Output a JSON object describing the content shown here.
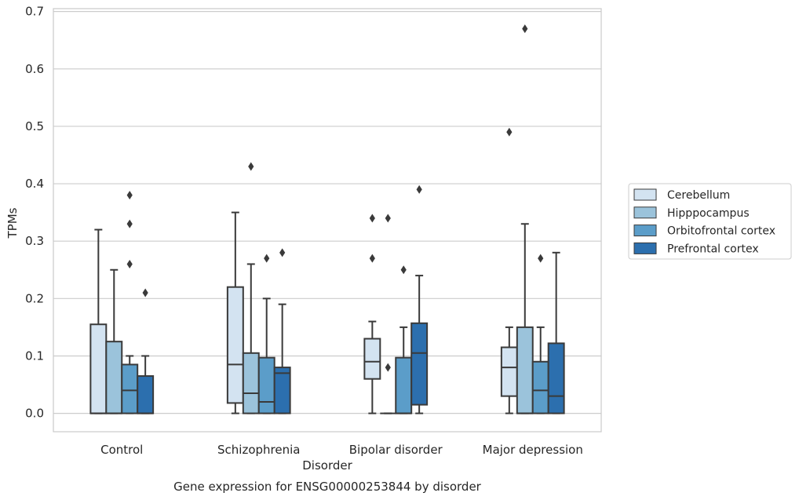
{
  "chart_data": {
    "type": "box",
    "title": "",
    "caption": "Gene expression for ENSG00000253844 by disorder",
    "xlabel": "Disorder",
    "ylabel": "TPMs",
    "ylim": [
      -0.032,
      0.705
    ],
    "yticks": [
      0.0,
      0.1,
      0.2,
      0.3,
      0.4,
      0.5,
      0.6,
      0.7
    ],
    "ytick_labels": [
      "0.0",
      "0.1",
      "0.2",
      "0.3",
      "0.4",
      "0.5",
      "0.6",
      "0.7"
    ],
    "grid": true,
    "legend_position": "right",
    "categories": [
      "Control",
      "Schizophrenia",
      "Bipolar disorder",
      "Major depression"
    ],
    "series": [
      {
        "name": "Cerebellum",
        "color": "#d3e3f1",
        "boxes": [
          {
            "whislo": 0.0,
            "q1": 0.0,
            "med": 0.0,
            "q3": 0.155,
            "whishi": 0.32,
            "fliers": []
          },
          {
            "whislo": 0.0,
            "q1": 0.018,
            "med": 0.085,
            "q3": 0.22,
            "whishi": 0.35,
            "fliers": []
          },
          {
            "whislo": 0.0,
            "q1": 0.06,
            "med": 0.09,
            "q3": 0.13,
            "whishi": 0.16,
            "fliers": [
              0.27,
              0.34
            ]
          },
          {
            "whislo": 0.0,
            "q1": 0.03,
            "med": 0.08,
            "q3": 0.115,
            "whishi": 0.15,
            "fliers": [
              0.49
            ]
          }
        ]
      },
      {
        "name": "Hipppocampus",
        "color": "#9bc3db",
        "boxes": [
          {
            "whislo": 0.0,
            "q1": 0.0,
            "med": 0.0,
            "q3": 0.125,
            "whishi": 0.25,
            "fliers": []
          },
          {
            "whislo": 0.0,
            "q1": 0.0,
            "med": 0.035,
            "q3": 0.105,
            "whishi": 0.26,
            "fliers": [
              0.43
            ]
          },
          {
            "whislo": 0.0,
            "q1": 0.0,
            "med": 0.0,
            "q3": 0.0,
            "whishi": 0.0,
            "fliers": [
              0.08,
              0.34
            ]
          },
          {
            "whislo": 0.0,
            "q1": 0.0,
            "med": 0.0,
            "q3": 0.15,
            "whishi": 0.33,
            "fliers": [
              0.67
            ]
          }
        ]
      },
      {
        "name": "Orbitofrontal cortex",
        "color": "#5b9dc9",
        "boxes": [
          {
            "whislo": 0.0,
            "q1": 0.0,
            "med": 0.04,
            "q3": 0.085,
            "whishi": 0.1,
            "fliers": [
              0.26,
              0.33,
              0.38
            ]
          },
          {
            "whislo": 0.0,
            "q1": 0.0,
            "med": 0.02,
            "q3": 0.097,
            "whishi": 0.2,
            "fliers": [
              0.27
            ]
          },
          {
            "whislo": 0.0,
            "q1": 0.0,
            "med": 0.0,
            "q3": 0.097,
            "whishi": 0.15,
            "fliers": [
              0.25
            ]
          },
          {
            "whislo": 0.0,
            "q1": 0.0,
            "med": 0.04,
            "q3": 0.09,
            "whishi": 0.15,
            "fliers": [
              0.27
            ]
          }
        ]
      },
      {
        "name": "Prefrontal cortex",
        "color": "#2c6fae",
        "boxes": [
          {
            "whislo": 0.0,
            "q1": 0.0,
            "med": 0.0,
            "q3": 0.065,
            "whishi": 0.1,
            "fliers": [
              0.21
            ]
          },
          {
            "whislo": 0.0,
            "q1": 0.0,
            "med": 0.07,
            "q3": 0.08,
            "whishi": 0.19,
            "fliers": [
              0.28
            ]
          },
          {
            "whislo": 0.0,
            "q1": 0.015,
            "med": 0.105,
            "q3": 0.157,
            "whishi": 0.24,
            "fliers": [
              0.39
            ]
          },
          {
            "whislo": 0.0,
            "q1": 0.0,
            "med": 0.03,
            "q3": 0.122,
            "whishi": 0.28,
            "fliers": []
          }
        ]
      }
    ]
  }
}
